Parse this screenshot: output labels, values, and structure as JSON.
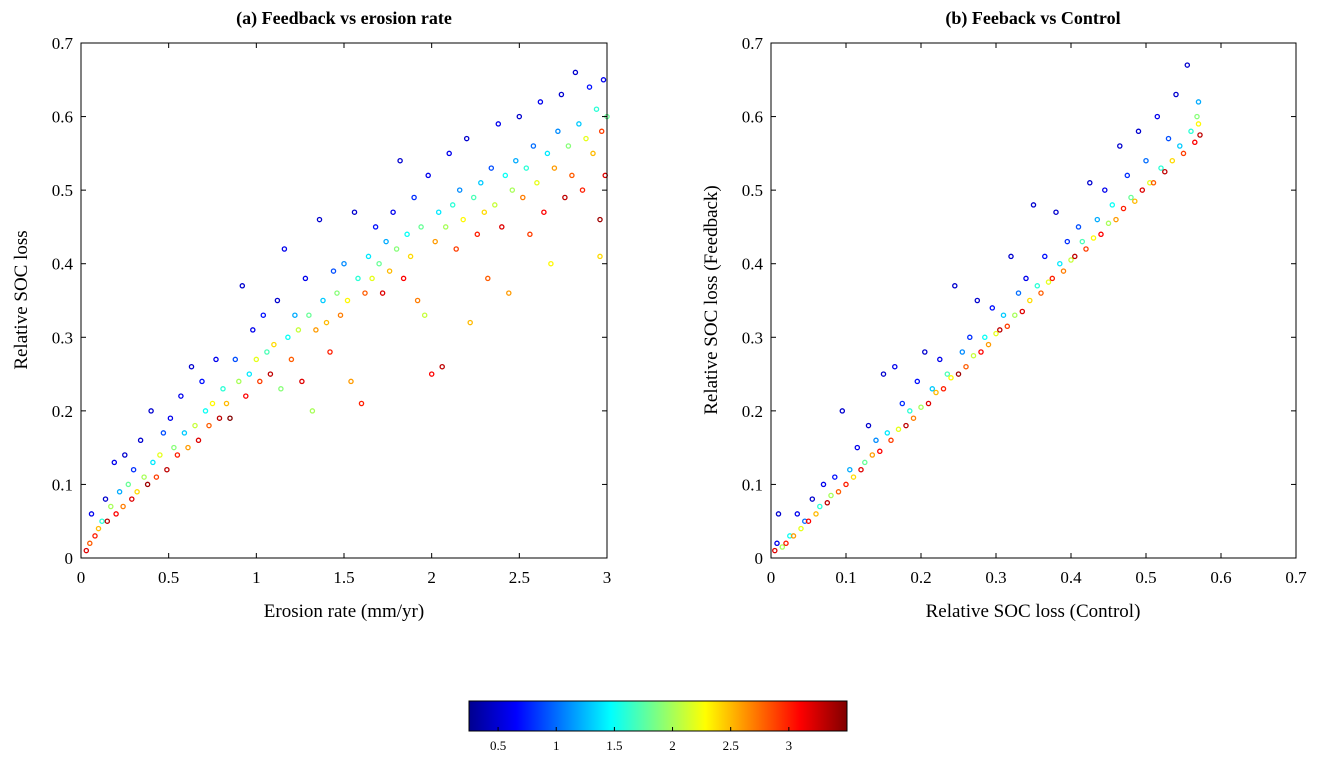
{
  "chart_data": [
    {
      "type": "scatter",
      "title": "(a) Feedback vs erosion rate",
      "xlabel": "Erosion rate (mm/yr)",
      "ylabel": "Relative SOC loss",
      "xlim": [
        0,
        3
      ],
      "ylim": [
        0,
        0.7
      ],
      "xticks": [
        "0",
        "0.5",
        "1",
        "1.5",
        "2",
        "2.5",
        "3"
      ],
      "yticks": [
        "0",
        "0.1",
        "0.2",
        "0.3",
        "0.4",
        "0.5",
        "0.6",
        "0.7"
      ],
      "grid": false,
      "points": [
        [
          0.03,
          0.01,
          3.2
        ],
        [
          0.05,
          0.02,
          2.8
        ],
        [
          0.06,
          0.06,
          0.6
        ],
        [
          0.08,
          0.03,
          3.0
        ],
        [
          0.1,
          0.04,
          2.5
        ],
        [
          0.12,
          0.05,
          1.6
        ],
        [
          0.14,
          0.08,
          0.5
        ],
        [
          0.15,
          0.05,
          3.3
        ],
        [
          0.17,
          0.07,
          2.0
        ],
        [
          0.19,
          0.13,
          0.6
        ],
        [
          0.2,
          0.06,
          3.1
        ],
        [
          0.22,
          0.09,
          1.2
        ],
        [
          0.24,
          0.07,
          2.7
        ],
        [
          0.25,
          0.14,
          0.5
        ],
        [
          0.27,
          0.1,
          1.8
        ],
        [
          0.29,
          0.08,
          3.2
        ],
        [
          0.3,
          0.12,
          0.8
        ],
        [
          0.32,
          0.09,
          2.4
        ],
        [
          0.34,
          0.16,
          0.5
        ],
        [
          0.36,
          0.11,
          2.0
        ],
        [
          0.38,
          0.1,
          3.4
        ],
        [
          0.4,
          0.2,
          0.5
        ],
        [
          0.41,
          0.13,
          1.4
        ],
        [
          0.43,
          0.11,
          2.9
        ],
        [
          0.45,
          0.14,
          2.2
        ],
        [
          0.47,
          0.17,
          0.9
        ],
        [
          0.49,
          0.12,
          3.3
        ],
        [
          0.51,
          0.19,
          0.6
        ],
        [
          0.53,
          0.15,
          1.9
        ],
        [
          0.55,
          0.14,
          3.0
        ],
        [
          0.57,
          0.22,
          0.6
        ],
        [
          0.59,
          0.17,
          1.3
        ],
        [
          0.61,
          0.15,
          2.6
        ],
        [
          0.63,
          0.26,
          0.5
        ],
        [
          0.65,
          0.18,
          2.1
        ],
        [
          0.67,
          0.16,
          3.2
        ],
        [
          0.69,
          0.24,
          0.7
        ],
        [
          0.71,
          0.2,
          1.5
        ],
        [
          0.73,
          0.18,
          2.8
        ],
        [
          0.75,
          0.21,
          2.3
        ],
        [
          0.77,
          0.27,
          0.6
        ],
        [
          0.79,
          0.19,
          3.3
        ],
        [
          0.81,
          0.23,
          1.6
        ],
        [
          0.83,
          0.21,
          2.5
        ],
        [
          0.85,
          0.19,
          3.5
        ],
        [
          0.88,
          0.27,
          0.9
        ],
        [
          0.9,
          0.24,
          2.0
        ],
        [
          0.92,
          0.37,
          0.5
        ],
        [
          0.94,
          0.22,
          3.1
        ],
        [
          0.96,
          0.25,
          1.4
        ],
        [
          0.98,
          0.31,
          0.6
        ],
        [
          1.0,
          0.27,
          2.2
        ],
        [
          1.02,
          0.24,
          2.9
        ],
        [
          1.04,
          0.33,
          0.7
        ],
        [
          1.06,
          0.28,
          1.7
        ],
        [
          1.08,
          0.25,
          3.3
        ],
        [
          1.1,
          0.29,
          2.4
        ],
        [
          1.12,
          0.35,
          0.5
        ],
        [
          1.14,
          0.23,
          1.9
        ],
        [
          1.16,
          0.42,
          0.6
        ],
        [
          1.18,
          0.3,
          1.5
        ],
        [
          1.2,
          0.27,
          2.8
        ],
        [
          1.22,
          0.33,
          1.2
        ],
        [
          1.24,
          0.31,
          2.1
        ],
        [
          1.26,
          0.24,
          3.2
        ],
        [
          1.28,
          0.38,
          0.6
        ],
        [
          1.3,
          0.33,
          1.8
        ],
        [
          1.32,
          0.2,
          2.0
        ],
        [
          1.34,
          0.31,
          2.6
        ],
        [
          1.36,
          0.46,
          0.5
        ],
        [
          1.38,
          0.35,
          1.3
        ],
        [
          1.4,
          0.32,
          2.5
        ],
        [
          1.42,
          0.28,
          3.0
        ],
        [
          1.44,
          0.39,
          0.9
        ],
        [
          1.46,
          0.36,
          1.9
        ],
        [
          1.48,
          0.33,
          2.7
        ],
        [
          1.5,
          0.4,
          1.1
        ],
        [
          1.52,
          0.35,
          2.3
        ],
        [
          1.54,
          0.24,
          2.6
        ],
        [
          1.56,
          0.47,
          0.5
        ],
        [
          1.58,
          0.38,
          1.6
        ],
        [
          1.6,
          0.21,
          3.0
        ],
        [
          1.62,
          0.36,
          2.8
        ],
        [
          1.64,
          0.41,
          1.4
        ],
        [
          1.66,
          0.38,
          2.2
        ],
        [
          1.68,
          0.45,
          0.7
        ],
        [
          1.7,
          0.4,
          1.8
        ],
        [
          1.72,
          0.36,
          3.2
        ],
        [
          1.74,
          0.43,
          1.2
        ],
        [
          1.76,
          0.39,
          2.5
        ],
        [
          1.78,
          0.47,
          0.6
        ],
        [
          1.8,
          0.42,
          1.9
        ],
        [
          1.82,
          0.54,
          0.5
        ],
        [
          1.84,
          0.38,
          3.1
        ],
        [
          1.86,
          0.44,
          1.5
        ],
        [
          1.88,
          0.41,
          2.4
        ],
        [
          1.9,
          0.49,
          0.8
        ],
        [
          1.92,
          0.35,
          2.7
        ],
        [
          1.94,
          0.45,
          1.8
        ],
        [
          1.96,
          0.33,
          2.1
        ],
        [
          1.98,
          0.52,
          0.6
        ],
        [
          2.0,
          0.25,
          3.1
        ],
        [
          2.02,
          0.43,
          2.6
        ],
        [
          2.04,
          0.47,
          1.4
        ],
        [
          2.06,
          0.26,
          3.3
        ],
        [
          2.08,
          0.45,
          2.0
        ],
        [
          2.1,
          0.55,
          0.6
        ],
        [
          2.12,
          0.48,
          1.6
        ],
        [
          2.14,
          0.42,
          2.9
        ],
        [
          2.16,
          0.5,
          1.1
        ],
        [
          2.18,
          0.46,
          2.3
        ],
        [
          2.2,
          0.57,
          0.5
        ],
        [
          2.22,
          0.32,
          2.5
        ],
        [
          2.24,
          0.49,
          1.7
        ],
        [
          2.26,
          0.44,
          3.0
        ],
        [
          2.28,
          0.51,
          1.3
        ],
        [
          2.3,
          0.47,
          2.4
        ],
        [
          2.32,
          0.38,
          2.8
        ],
        [
          2.34,
          0.53,
          0.9
        ],
        [
          2.36,
          0.48,
          2.1
        ],
        [
          2.38,
          0.59,
          0.6
        ],
        [
          2.4,
          0.45,
          3.2
        ],
        [
          2.42,
          0.52,
          1.5
        ],
        [
          2.44,
          0.36,
          2.6
        ],
        [
          2.46,
          0.5,
          2.0
        ],
        [
          2.48,
          0.54,
          1.2
        ],
        [
          2.5,
          0.6,
          0.5
        ],
        [
          2.52,
          0.49,
          2.7
        ],
        [
          2.54,
          0.53,
          1.6
        ],
        [
          2.56,
          0.44,
          2.9
        ],
        [
          2.58,
          0.56,
          1.0
        ],
        [
          2.6,
          0.51,
          2.2
        ],
        [
          2.62,
          0.62,
          0.6
        ],
        [
          2.64,
          0.47,
          3.1
        ],
        [
          2.66,
          0.55,
          1.4
        ],
        [
          2.68,
          0.4,
          2.3
        ],
        [
          2.7,
          0.53,
          2.6
        ],
        [
          2.72,
          0.58,
          1.1
        ],
        [
          2.74,
          0.63,
          0.5
        ],
        [
          2.76,
          0.49,
          3.3
        ],
        [
          2.78,
          0.56,
          1.9
        ],
        [
          2.8,
          0.52,
          2.8
        ],
        [
          2.82,
          0.66,
          0.5
        ],
        [
          2.84,
          0.59,
          1.3
        ],
        [
          2.86,
          0.5,
          3.0
        ],
        [
          2.88,
          0.57,
          2.2
        ],
        [
          2.9,
          0.64,
          0.7
        ],
        [
          2.92,
          0.55,
          2.5
        ],
        [
          2.94,
          0.61,
          1.6
        ],
        [
          2.96,
          0.41,
          2.4
        ],
        [
          2.97,
          0.58,
          2.9
        ],
        [
          2.98,
          0.65,
          0.6
        ],
        [
          2.99,
          0.52,
          3.2
        ],
        [
          3.0,
          0.6,
          1.8
        ],
        [
          2.96,
          0.46,
          3.4
        ]
      ]
    },
    {
      "type": "scatter",
      "title": "(b) Feeback vs Control",
      "xlabel": "Relative SOC loss (Control)",
      "ylabel": "Relative SOC loss (Feedback)",
      "xlim": [
        0,
        0.7
      ],
      "ylim": [
        0,
        0.7
      ],
      "xticks": [
        "0",
        "0.1",
        "0.2",
        "0.3",
        "0.4",
        "0.5",
        "0.6",
        "0.7"
      ],
      "yticks": [
        "0",
        "0.1",
        "0.2",
        "0.3",
        "0.4",
        "0.5",
        "0.6",
        "0.7"
      ],
      "grid": false,
      "points": [
        [
          0.005,
          0.01,
          3.2
        ],
        [
          0.008,
          0.02,
          0.6
        ],
        [
          0.01,
          0.06,
          0.5
        ],
        [
          0.015,
          0.015,
          2.0
        ],
        [
          0.02,
          0.02,
          3.0
        ],
        [
          0.025,
          0.03,
          1.5
        ],
        [
          0.03,
          0.03,
          2.6
        ],
        [
          0.035,
          0.06,
          0.6
        ],
        [
          0.04,
          0.04,
          2.2
        ],
        [
          0.045,
          0.05,
          1.0
        ],
        [
          0.05,
          0.05,
          3.1
        ],
        [
          0.055,
          0.08,
          0.5
        ],
        [
          0.06,
          0.06,
          2.5
        ],
        [
          0.065,
          0.07,
          1.6
        ],
        [
          0.07,
          0.1,
          0.6
        ],
        [
          0.075,
          0.075,
          3.3
        ],
        [
          0.08,
          0.085,
          2.0
        ],
        [
          0.085,
          0.11,
          0.7
        ],
        [
          0.09,
          0.09,
          2.8
        ],
        [
          0.095,
          0.2,
          0.5
        ],
        [
          0.1,
          0.1,
          3.0
        ],
        [
          0.105,
          0.12,
          1.2
        ],
        [
          0.11,
          0.11,
          2.4
        ],
        [
          0.115,
          0.15,
          0.6
        ],
        [
          0.12,
          0.12,
          3.2
        ],
        [
          0.125,
          0.13,
          1.8
        ],
        [
          0.13,
          0.18,
          0.5
        ],
        [
          0.135,
          0.14,
          2.6
        ],
        [
          0.14,
          0.16,
          1.1
        ],
        [
          0.145,
          0.145,
          3.1
        ],
        [
          0.15,
          0.25,
          0.5
        ],
        [
          0.155,
          0.17,
          1.4
        ],
        [
          0.16,
          0.16,
          2.9
        ],
        [
          0.165,
          0.26,
          0.6
        ],
        [
          0.17,
          0.175,
          2.2
        ],
        [
          0.175,
          0.21,
          0.8
        ],
        [
          0.18,
          0.18,
          3.3
        ],
        [
          0.185,
          0.2,
          1.6
        ],
        [
          0.19,
          0.19,
          2.7
        ],
        [
          0.195,
          0.24,
          0.7
        ],
        [
          0.2,
          0.205,
          2.0
        ],
        [
          0.205,
          0.28,
          0.5
        ],
        [
          0.21,
          0.21,
          3.2
        ],
        [
          0.215,
          0.23,
          1.3
        ],
        [
          0.22,
          0.225,
          2.5
        ],
        [
          0.225,
          0.27,
          0.6
        ],
        [
          0.23,
          0.23,
          3.0
        ],
        [
          0.235,
          0.25,
          1.7
        ],
        [
          0.24,
          0.245,
          2.3
        ],
        [
          0.245,
          0.37,
          0.5
        ],
        [
          0.25,
          0.25,
          3.4
        ],
        [
          0.255,
          0.28,
          1.1
        ],
        [
          0.26,
          0.26,
          2.8
        ],
        [
          0.265,
          0.3,
          0.8
        ],
        [
          0.27,
          0.275,
          2.1
        ],
        [
          0.275,
          0.35,
          0.5
        ],
        [
          0.28,
          0.28,
          3.1
        ],
        [
          0.285,
          0.3,
          1.5
        ],
        [
          0.29,
          0.29,
          2.6
        ],
        [
          0.295,
          0.34,
          0.7
        ],
        [
          0.3,
          0.305,
          2.2
        ],
        [
          0.305,
          0.31,
          3.3
        ],
        [
          0.31,
          0.33,
          1.3
        ],
        [
          0.315,
          0.315,
          2.9
        ],
        [
          0.32,
          0.41,
          0.5
        ],
        [
          0.325,
          0.33,
          2.0
        ],
        [
          0.33,
          0.36,
          1.0
        ],
        [
          0.335,
          0.335,
          3.2
        ],
        [
          0.34,
          0.38,
          0.6
        ],
        [
          0.345,
          0.35,
          2.4
        ],
        [
          0.35,
          0.48,
          0.5
        ],
        [
          0.355,
          0.37,
          1.6
        ],
        [
          0.36,
          0.36,
          2.8
        ],
        [
          0.365,
          0.41,
          0.7
        ],
        [
          0.37,
          0.375,
          2.2
        ],
        [
          0.375,
          0.38,
          3.0
        ],
        [
          0.38,
          0.47,
          0.5
        ],
        [
          0.385,
          0.4,
          1.4
        ],
        [
          0.39,
          0.39,
          2.7
        ],
        [
          0.395,
          0.43,
          0.8
        ],
        [
          0.4,
          0.405,
          2.1
        ],
        [
          0.405,
          0.41,
          3.3
        ],
        [
          0.41,
          0.45,
          0.9
        ],
        [
          0.415,
          0.43,
          1.7
        ],
        [
          0.42,
          0.42,
          2.9
        ],
        [
          0.425,
          0.51,
          0.5
        ],
        [
          0.43,
          0.435,
          2.3
        ],
        [
          0.435,
          0.46,
          1.2
        ],
        [
          0.44,
          0.44,
          3.1
        ],
        [
          0.445,
          0.5,
          0.6
        ],
        [
          0.45,
          0.455,
          2.0
        ],
        [
          0.455,
          0.48,
          1.5
        ],
        [
          0.46,
          0.46,
          2.6
        ],
        [
          0.465,
          0.56,
          0.5
        ],
        [
          0.47,
          0.475,
          3.0
        ],
        [
          0.475,
          0.52,
          0.8
        ],
        [
          0.48,
          0.49,
          1.8
        ],
        [
          0.485,
          0.485,
          2.5
        ],
        [
          0.49,
          0.58,
          0.5
        ],
        [
          0.495,
          0.5,
          3.2
        ],
        [
          0.5,
          0.54,
          1.0
        ],
        [
          0.505,
          0.51,
          2.2
        ],
        [
          0.51,
          0.51,
          2.8
        ],
        [
          0.515,
          0.6,
          0.6
        ],
        [
          0.52,
          0.53,
          1.6
        ],
        [
          0.525,
          0.525,
          3.3
        ],
        [
          0.53,
          0.57,
          0.9
        ],
        [
          0.535,
          0.54,
          2.4
        ],
        [
          0.54,
          0.63,
          0.5
        ],
        [
          0.545,
          0.56,
          1.3
        ],
        [
          0.55,
          0.55,
          2.9
        ],
        [
          0.555,
          0.67,
          0.5
        ],
        [
          0.56,
          0.58,
          1.6
        ],
        [
          0.565,
          0.565,
          3.1
        ],
        [
          0.57,
          0.62,
          1.2
        ],
        [
          0.57,
          0.59,
          2.3
        ],
        [
          0.572,
          0.575,
          3.3
        ],
        [
          0.568,
          0.6,
          1.9
        ]
      ]
    }
  ],
  "colorbar": {
    "range": [
      0.25,
      3.5
    ],
    "ticks": [
      "0.5",
      "1",
      "1.5",
      "2",
      "2.5",
      "3"
    ],
    "tick_values": [
      0.5,
      1,
      1.5,
      2,
      2.5,
      3
    ],
    "colormap": "jet"
  }
}
